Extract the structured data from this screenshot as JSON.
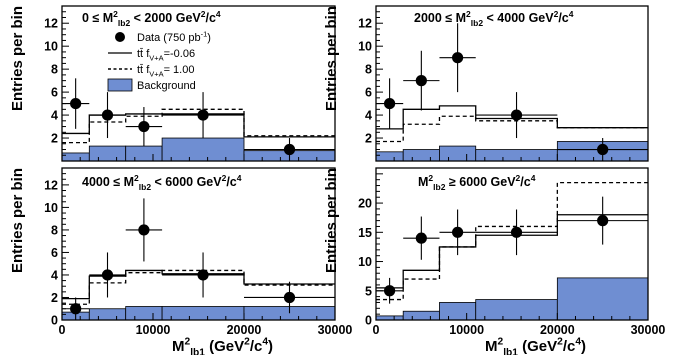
{
  "colors": {
    "background_fill": "#6f8ed2",
    "data_marker": "#000000",
    "frame": "#000000"
  },
  "legend": {
    "entries": [
      {
        "label": "Data (750 pb⁻¹)",
        "style": "data"
      },
      {
        "label": "tt̄ fV+A=-0.06",
        "style": "solid"
      },
      {
        "label": "tt̄ fV+A= 1.00",
        "style": "dashed"
      },
      {
        "label": "Background",
        "style": "fill"
      }
    ]
  },
  "chart_data": [
    {
      "type": "bar",
      "title": "0 ≤ M²lb2 < 2000 GeV²/c⁴",
      "xlabel": "",
      "ylabel": "Entries per bin",
      "xlim": [
        0,
        30000
      ],
      "ylim": [
        0,
        13.5
      ],
      "yticks": [
        2,
        4,
        6,
        8,
        10,
        12
      ],
      "ytick_labels": [
        "2",
        "4",
        "6",
        "8",
        "10",
        "12"
      ],
      "bin_edges": [
        0,
        3000,
        7000,
        11000,
        20000,
        30000
      ],
      "series": [
        {
          "name": "Background",
          "style": "fill",
          "values": [
            0.7,
            1.3,
            1.3,
            2.0,
            0.9
          ]
        },
        {
          "name": "tt̄ fV+A=-0.06",
          "style": "solid",
          "values": [
            2.4,
            4.0,
            4.1,
            4.1,
            2.1
          ]
        },
        {
          "name": "tt̄ fV+A= 1.00",
          "style": "dashed",
          "values": [
            1.6,
            3.4,
            3.9,
            4.5,
            2.2
          ]
        },
        {
          "name": "Data (750 pb⁻¹)",
          "style": "data",
          "x": [
            1500,
            5000,
            9000,
            15500,
            25000
          ],
          "values": [
            5,
            4,
            3,
            4,
            1
          ],
          "yerr": [
            2.2,
            2.0,
            1.7,
            2.0,
            1.0
          ],
          "xerr": [
            1500,
            2000,
            2000,
            4500,
            5000
          ]
        }
      ]
    },
    {
      "type": "bar",
      "title": "2000 ≤ M²lb2 < 4000 GeV²/c⁴",
      "xlabel": "",
      "ylabel": "Entries per bin",
      "xlim": [
        0,
        30000
      ],
      "ylim": [
        0,
        13.5
      ],
      "yticks": [
        2,
        4,
        6,
        8,
        10,
        12
      ],
      "ytick_labels": [
        "2",
        "4",
        "6",
        "8",
        "10",
        "12"
      ],
      "bin_edges": [
        0,
        3000,
        7000,
        11000,
        20000,
        30000
      ],
      "series": [
        {
          "name": "Background",
          "style": "fill",
          "values": [
            0.8,
            1.0,
            1.3,
            1.0,
            1.7
          ]
        },
        {
          "name": "tt̄ fV+A=-0.06",
          "style": "solid",
          "values": [
            2.8,
            4.5,
            4.8,
            3.7,
            2.9
          ]
        },
        {
          "name": "tt̄ fV+A= 1.00",
          "style": "dashed",
          "values": [
            1.7,
            3.2,
            3.9,
            3.5,
            2.9
          ]
        },
        {
          "name": "Data (750 pb⁻¹)",
          "style": "data",
          "x": [
            1500,
            5000,
            9000,
            15500,
            25000
          ],
          "values": [
            5,
            7,
            9,
            4,
            1
          ],
          "yerr": [
            2.2,
            2.6,
            3.0,
            2.0,
            1.0
          ],
          "xerr": [
            1500,
            2000,
            2000,
            4500,
            5000
          ]
        }
      ]
    },
    {
      "type": "bar",
      "title": "4000 ≤ M²lb2 < 6000 GeV²/c⁴",
      "xlabel": "M²lb1 (GeV²/c⁴)",
      "ylabel": "Entries per bin",
      "xlim": [
        0,
        30000
      ],
      "ylim": [
        0,
        13.5
      ],
      "xticks": [
        0,
        10000,
        20000,
        30000
      ],
      "xtick_labels": [
        "0",
        "10000",
        "20000",
        "30000"
      ],
      "yticks": [
        0,
        2,
        4,
        6,
        8,
        10,
        12
      ],
      "ytick_labels": [
        "0",
        "2",
        "4",
        "6",
        "8",
        "10",
        "12"
      ],
      "bin_edges": [
        0,
        3000,
        7000,
        11000,
        20000,
        30000
      ],
      "series": [
        {
          "name": "Background",
          "style": "fill",
          "values": [
            0.7,
            1.0,
            1.2,
            1.2,
            1.2
          ]
        },
        {
          "name": "tt̄ fV+A=-0.06",
          "style": "solid",
          "values": [
            1.9,
            3.9,
            4.4,
            4.1,
            3.2
          ]
        },
        {
          "name": "tt̄ fV+A= 1.00",
          "style": "dashed",
          "values": [
            1.4,
            3.3,
            4.2,
            4.4,
            3.1
          ]
        },
        {
          "name": "Data (750 pb⁻¹)",
          "style": "data",
          "x": [
            1500,
            5000,
            9000,
            15500,
            25000
          ],
          "values": [
            1,
            4,
            8,
            4,
            2
          ],
          "yerr": [
            1.0,
            2.0,
            2.8,
            2.0,
            1.4
          ],
          "xerr": [
            1500,
            2000,
            2000,
            4500,
            5000
          ]
        }
      ]
    },
    {
      "type": "bar",
      "title": "M²lb2 ≥ 6000 GeV²/c⁴",
      "xlabel": "M²lb1 (GeV²/c⁴)",
      "ylabel": "Entries per bin",
      "xlim": [
        0,
        30000
      ],
      "ylim": [
        0,
        26
      ],
      "xticks": [
        0,
        10000,
        20000,
        30000
      ],
      "xtick_labels": [
        "0",
        "10000",
        "20000",
        "30000"
      ],
      "yticks": [
        0,
        5,
        10,
        15,
        20
      ],
      "ytick_labels": [
        "0",
        "5",
        "10",
        "15",
        "20"
      ],
      "bin_edges": [
        0,
        3000,
        7000,
        11000,
        20000,
        30000
      ],
      "series": [
        {
          "name": "Background",
          "style": "fill",
          "values": [
            0.7,
            1.5,
            3.0,
            3.5,
            7.2
          ]
        },
        {
          "name": "tt̄ fV+A=-0.06",
          "style": "solid",
          "values": [
            5.5,
            8.5,
            12.5,
            14.5,
            18.0
          ]
        },
        {
          "name": "tt̄ fV+A= 1.00",
          "style": "dashed",
          "values": [
            3.5,
            7.0,
            12.5,
            16.0,
            23.5
          ]
        },
        {
          "name": "Data (750 pb⁻¹)",
          "style": "data",
          "x": [
            1500,
            5000,
            9000,
            15500,
            25000
          ],
          "values": [
            5,
            14,
            15,
            15,
            17
          ],
          "yerr": [
            2.2,
            3.7,
            3.9,
            3.9,
            4.1
          ],
          "xerr": [
            1500,
            2000,
            2000,
            4500,
            5000
          ]
        }
      ]
    }
  ]
}
